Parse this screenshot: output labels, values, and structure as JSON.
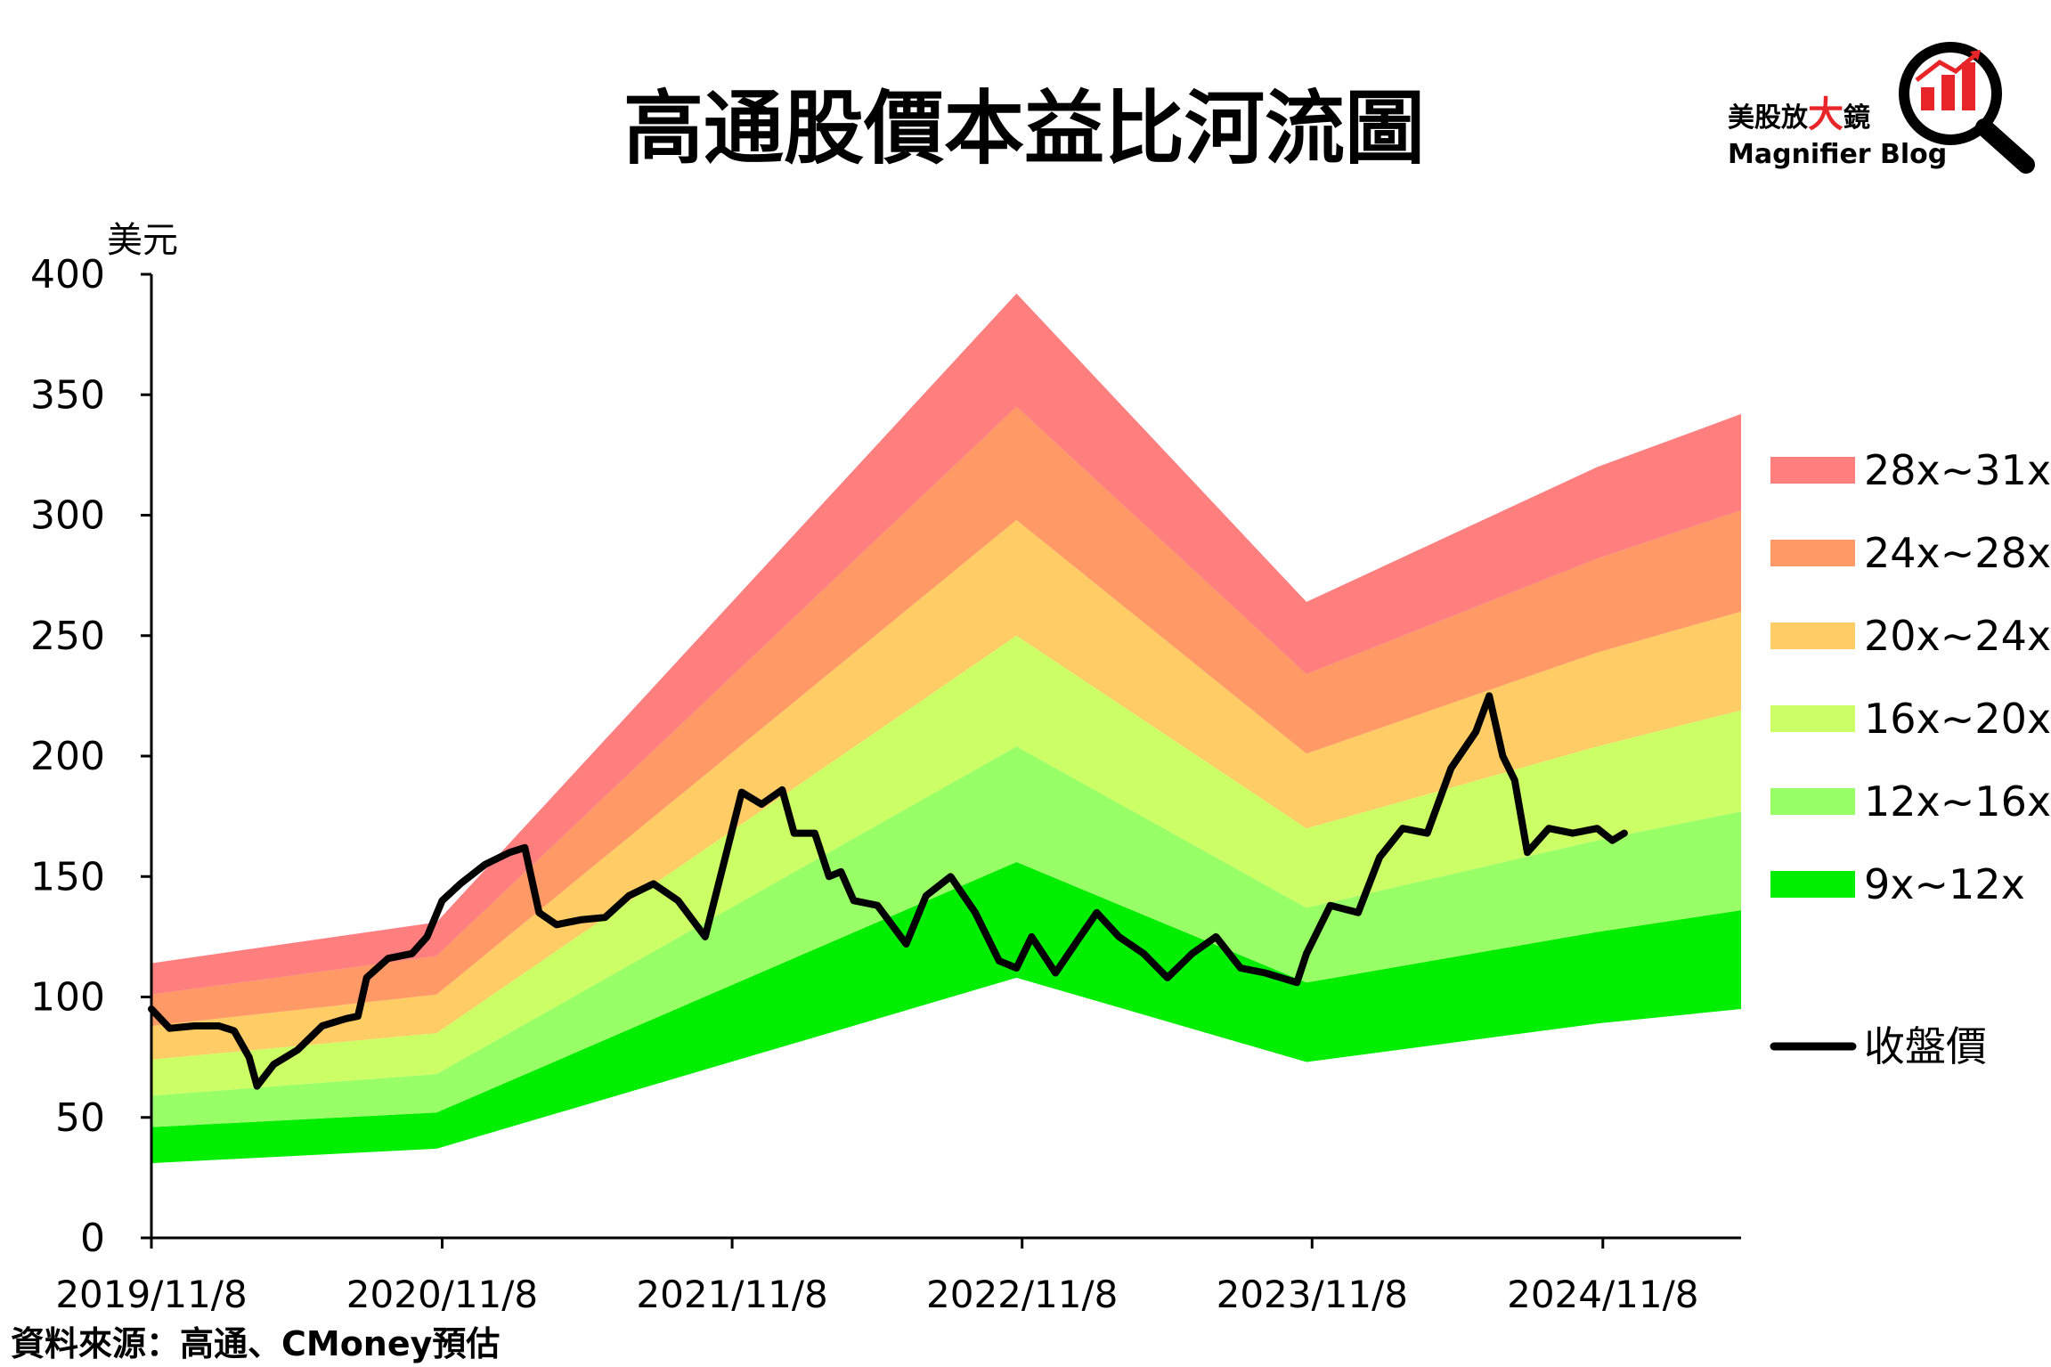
{
  "chart_data": {
    "type": "area",
    "title": "高通股價本益比河流圖",
    "ylabel": "美元",
    "ylim": [
      0,
      400
    ],
    "yticks": [
      0,
      50,
      100,
      150,
      200,
      250,
      300,
      350,
      400
    ],
    "xticks": [
      "2019/11/8",
      "2020/11/8",
      "2021/11/8",
      "2022/11/8",
      "2023/11/8",
      "2024/11/8"
    ],
    "xlim": [
      "2019/11/8",
      "2025/5/1"
    ],
    "grid": false,
    "legend_position": "right",
    "band_x": [
      "2019/11/8",
      "2020/11/1",
      "2022/11/1",
      "2023/11/1",
      "2024/11/1",
      "2025/5/1"
    ],
    "bands": [
      {
        "name": "9x~12x",
        "color": "#00ef00",
        "lower": [
          31,
          37,
          108,
          73,
          89,
          95
        ],
        "upper": [
          46,
          52,
          156,
          106,
          127,
          136
        ]
      },
      {
        "name": "12x~16x",
        "color": "#99ff66",
        "lower": [
          46,
          52,
          156,
          106,
          127,
          136
        ],
        "upper": [
          59,
          68,
          204,
          137,
          165,
          177
        ]
      },
      {
        "name": "16x~20x",
        "color": "#ccff66",
        "lower": [
          59,
          68,
          204,
          137,
          165,
          177
        ],
        "upper": [
          74,
          85,
          250,
          170,
          204,
          219
        ]
      },
      {
        "name": "20x~24x",
        "color": "#ffcc66",
        "lower": [
          74,
          85,
          250,
          170,
          204,
          219
        ],
        "upper": [
          88,
          101,
          298,
          201,
          243,
          260
        ]
      },
      {
        "name": "24x~28x",
        "color": "#ff9966",
        "lower": [
          88,
          101,
          298,
          201,
          243,
          260
        ],
        "upper": [
          101,
          117,
          345,
          234,
          282,
          302
        ]
      },
      {
        "name": "28x~31x",
        "color": "#ff7f7f",
        "lower": [
          101,
          117,
          345,
          234,
          282,
          302
        ],
        "upper": [
          114,
          131,
          392,
          264,
          320,
          342
        ]
      }
    ],
    "price_series": {
      "name": "收盤價",
      "color": "#000000",
      "points": [
        [
          "2019/11/8",
          95
        ],
        [
          "2019/12/1",
          87
        ],
        [
          "2020/1/1",
          88
        ],
        [
          "2020/2/1",
          88
        ],
        [
          "2020/2/20",
          86
        ],
        [
          "2020/3/10",
          75
        ],
        [
          "2020/3/20",
          63
        ],
        [
          "2020/4/10",
          72
        ],
        [
          "2020/5/10",
          78
        ],
        [
          "2020/6/10",
          88
        ],
        [
          "2020/7/10",
          91
        ],
        [
          "2020/7/25",
          92
        ],
        [
          "2020/8/5",
          108
        ],
        [
          "2020/9/1",
          116
        ],
        [
          "2020/10/1",
          118
        ],
        [
          "2020/10/20",
          125
        ],
        [
          "2020/11/8",
          140
        ],
        [
          "2020/12/1",
          147
        ],
        [
          "2021/1/1",
          155
        ],
        [
          "2021/2/1",
          160
        ],
        [
          "2021/2/20",
          162
        ],
        [
          "2021/3/10",
          135
        ],
        [
          "2021/4/1",
          130
        ],
        [
          "2021/5/1",
          132
        ],
        [
          "2021/6/1",
          133
        ],
        [
          "2021/7/1",
          142
        ],
        [
          "2021/8/1",
          147
        ],
        [
          "2021/9/1",
          140
        ],
        [
          "2021/10/5",
          125
        ],
        [
          "2021/11/1",
          160
        ],
        [
          "2021/11/20",
          185
        ],
        [
          "2021/12/15",
          180
        ],
        [
          "2022/1/10",
          186
        ],
        [
          "2022/1/25",
          168
        ],
        [
          "2022/2/20",
          168
        ],
        [
          "2022/3/10",
          150
        ],
        [
          "2022/3/25",
          152
        ],
        [
          "2022/4/10",
          140
        ],
        [
          "2022/5/10",
          138
        ],
        [
          "2022/6/15",
          122
        ],
        [
          "2022/7/10",
          142
        ],
        [
          "2022/8/10",
          150
        ],
        [
          "2022/9/10",
          135
        ],
        [
          "2022/10/10",
          115
        ],
        [
          "2022/11/1",
          112
        ],
        [
          "2022/11/20",
          125
        ],
        [
          "2022/12/20",
          110
        ],
        [
          "2023/1/20",
          125
        ],
        [
          "2023/2/10",
          135
        ],
        [
          "2023/3/10",
          125
        ],
        [
          "2023/4/10",
          118
        ],
        [
          "2023/5/10",
          108
        ],
        [
          "2023/6/10",
          118
        ],
        [
          "2023/7/10",
          125
        ],
        [
          "2023/8/10",
          112
        ],
        [
          "2023/9/10",
          110
        ],
        [
          "2023/10/20",
          106
        ],
        [
          "2023/11/1",
          118
        ],
        [
          "2023/12/1",
          138
        ],
        [
          "2024/1/5",
          135
        ],
        [
          "2024/2/1",
          158
        ],
        [
          "2024/3/1",
          170
        ],
        [
          "2024/4/1",
          168
        ],
        [
          "2024/5/1",
          195
        ],
        [
          "2024/6/1",
          210
        ],
        [
          "2024/6/18",
          225
        ],
        [
          "2024/7/5",
          200
        ],
        [
          "2024/7/20",
          190
        ],
        [
          "2024/8/5",
          160
        ],
        [
          "2024/9/1",
          170
        ],
        [
          "2024/10/1",
          168
        ],
        [
          "2024/11/1",
          170
        ],
        [
          "2024/11/20",
          165
        ],
        [
          "2024/12/5",
          168
        ]
      ]
    }
  },
  "logo": {
    "brand_cn_parts": [
      "美股放",
      "大",
      "鏡"
    ],
    "brand_en": "Magnifier Blog",
    "icon": "magnifier-bar-chart-icon",
    "accent_color": "#e8262a"
  },
  "source_note": "資料來源：高通、CMoney預估"
}
